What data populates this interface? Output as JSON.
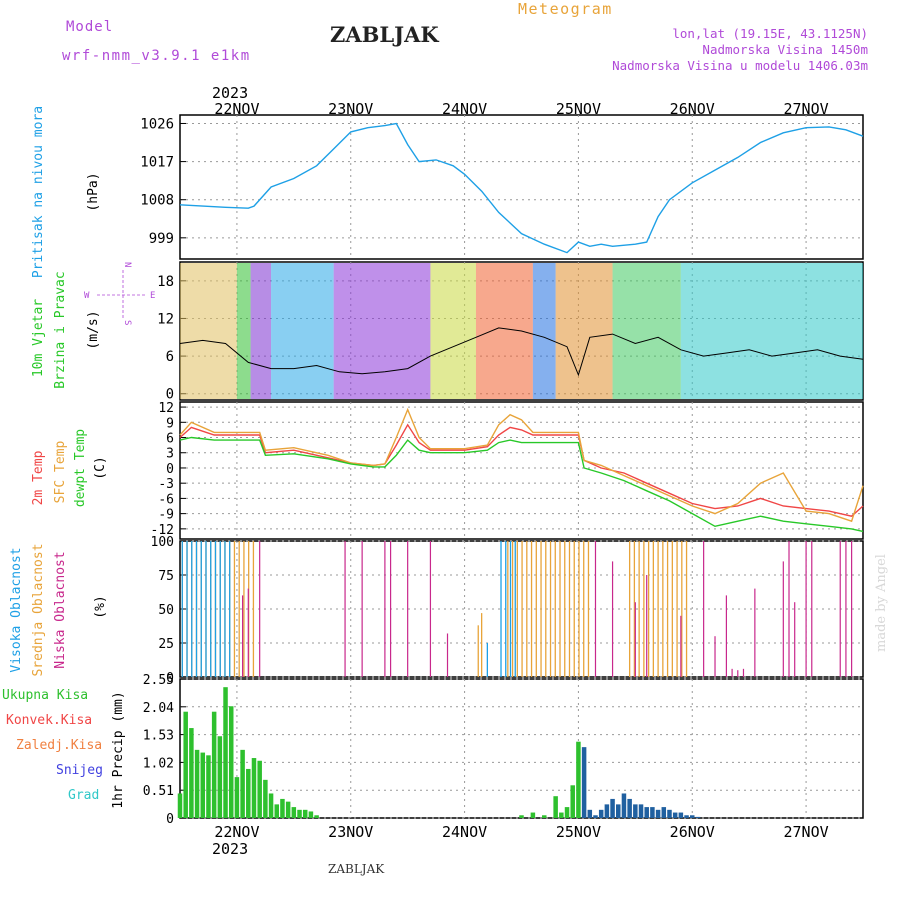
{
  "header": {
    "model_label": "Model",
    "model_name": "wrf-nmm_v3.9.1 e1km",
    "title": "ZABLJAK",
    "meteogram": "Meteogram",
    "coords": "lon,lat (19.15E, 43.1125N)",
    "elevation": "Nadmorska Visina 1450m",
    "model_elevation": "Nadmorska Visina u modelu 1406.03m",
    "footer_title": "ZABLJAK",
    "credit": "made by Angel"
  },
  "time_axis": {
    "year": "2023",
    "days": [
      "22NOV",
      "23NOV",
      "24NOV",
      "25NOV",
      "26NOV",
      "27NOV"
    ],
    "start_offset_days": -0.5,
    "end_offset_days": 5.5
  },
  "colors": {
    "pressure": "#1ea0e6",
    "temp2m": "#f04646",
    "sfc_temp": "#e8a43a",
    "dewpt": "#28c828",
    "high_cloud": "#1ea0e6",
    "mid_cloud": "#e8a43a",
    "low_cloud": "#c8288c",
    "precip": "#2ec02e",
    "snow_precip": "#2060a0",
    "wind_speed": "#000000"
  },
  "panels": {
    "pressure": {
      "ylabel_colored": "Pritisak na nivou mora",
      "unit": "(hPa)",
      "ticks": [
        "999",
        "1008",
        "1017",
        "1026"
      ]
    },
    "wind": {
      "ylabel_1": "10m Vjetar",
      "ylabel_2": "Brzina i Pravac",
      "unit": "(m/s)",
      "ticks": [
        "0",
        "6",
        "12",
        "18"
      ],
      "compass": {
        "n": "N",
        "s": "S",
        "e": "E",
        "w": "W"
      }
    },
    "temp": {
      "label_2m": "2m Temp",
      "label_sfc": "SFC Temp",
      "label_dew": "dewpt Temp",
      "unit": "(C)",
      "ticks": [
        "-12",
        "-9",
        "-6",
        "-3",
        "0",
        "3",
        "6",
        "9",
        "12"
      ]
    },
    "cloud": {
      "label_high": "Visoka Oblacnost",
      "label_mid": "Srednja Oblacnost",
      "label_low": "Niska Oblacnost",
      "unit": "(%)",
      "ticks": [
        "0",
        "25",
        "50",
        "75",
        "100"
      ]
    },
    "precip": {
      "legend": [
        "Ukupna Kisa",
        "Konvek.Kisa",
        "Zaledj.Kisa",
        "Snijeg",
        "Grad"
      ],
      "legend_colors": [
        "#2ec02e",
        "#f04646",
        "#f08040",
        "#4040e0",
        "#30c8c8"
      ],
      "ylabel": "1hr Precip (mm)",
      "ticks": [
        "0",
        "0.51",
        "1.02",
        "1.53",
        "2.04",
        "2.55"
      ]
    }
  },
  "chart_data": [
    {
      "type": "line",
      "name": "pressure",
      "ylim": [
        994,
        1028
      ],
      "x_days": [
        -0.5,
        -0.3,
        -0.1,
        0.1,
        0.15,
        0.3,
        0.5,
        0.7,
        0.85,
        1.0,
        1.15,
        1.3,
        1.4,
        1.5,
        1.6,
        1.75,
        1.9,
        2.0,
        2.15,
        2.3,
        2.5,
        2.7,
        2.9,
        3.0,
        3.1,
        3.2,
        3.3,
        3.5,
        3.6,
        3.7,
        3.8,
        4.0,
        4.2,
        4.4,
        4.6,
        4.8,
        5.0,
        5.2,
        5.35,
        5.5
      ],
      "values": [
        1006.8,
        1006.5,
        1006.2,
        1006,
        1006.5,
        1011,
        1013,
        1016,
        1020,
        1024,
        1025,
        1025.5,
        1026,
        1021,
        1017,
        1017.4,
        1016,
        1014,
        1010,
        1005,
        1000,
        997.5,
        995.5,
        998,
        997,
        997.5,
        997,
        997.5,
        998,
        1004,
        1008,
        1012,
        1015,
        1018,
        1021.5,
        1023.8,
        1025,
        1025.2,
        1024.5,
        1023
      ]
    },
    {
      "type": "line",
      "name": "10m wind speed",
      "ylim": [
        -1,
        21
      ],
      "x_days": [
        -0.5,
        -0.3,
        -0.1,
        0.1,
        0.3,
        0.5,
        0.7,
        0.9,
        1.1,
        1.3,
        1.5,
        1.7,
        1.9,
        2.1,
        2.3,
        2.5,
        2.7,
        2.9,
        3.0,
        3.1,
        3.3,
        3.5,
        3.7,
        3.9,
        4.1,
        4.3,
        4.5,
        4.7,
        4.9,
        5.1,
        5.3,
        5.5
      ],
      "values": [
        8,
        8.5,
        8,
        5,
        4,
        4,
        4.5,
        3.5,
        3.2,
        3.5,
        4,
        6,
        7.5,
        9,
        10.5,
        10,
        9,
        7.5,
        3,
        9,
        9.5,
        8,
        9,
        7,
        6,
        6.5,
        7,
        6,
        6.5,
        7,
        6,
        5.5
      ]
    },
    {
      "type": "line",
      "name": "temperature",
      "ylim": [
        -14,
        13
      ],
      "x_days": [
        -0.5,
        -0.4,
        -0.2,
        0,
        0.2,
        0.25,
        0.5,
        0.8,
        1.0,
        1.2,
        1.3,
        1.4,
        1.5,
        1.6,
        1.7,
        2.0,
        2.2,
        2.3,
        2.4,
        2.5,
        2.6,
        2.8,
        3.0,
        3.05,
        3.2,
        3.4,
        3.6,
        3.8,
        4.0,
        4.2,
        4.4,
        4.6,
        4.8,
        5.0,
        5.2,
        5.4,
        5.5
      ],
      "series": [
        {
          "name": "2m Temp",
          "values": [
            6,
            8,
            6.5,
            6.5,
            6.5,
            3,
            3.5,
            2,
            1,
            0.5,
            0.8,
            4.5,
            8.5,
            5,
            3.5,
            3.5,
            4.2,
            6.5,
            8,
            7.5,
            6.5,
            6.5,
            6.5,
            1.5,
            0,
            -1,
            -3,
            -5,
            -7,
            -8,
            -7.5,
            -6,
            -7.5,
            -8,
            -8.5,
            -9.5,
            -7.5
          ]
        },
        {
          "name": "SFC Temp",
          "values": [
            6.5,
            9,
            7,
            7,
            7,
            3.5,
            4,
            2.5,
            1,
            0.5,
            0.8,
            6,
            11.5,
            6,
            3.8,
            3.8,
            4.5,
            8.5,
            10.5,
            9.5,
            7,
            7,
            7,
            1.5,
            0.5,
            -1.5,
            -3.5,
            -5.5,
            -7.5,
            -9,
            -7,
            -3,
            -1,
            -8.5,
            -9,
            -10.5,
            -3.5
          ]
        },
        {
          "name": "dewpt Temp",
          "values": [
            5.5,
            6,
            5.5,
            5.5,
            5.5,
            2.5,
            2.8,
            1.8,
            0.8,
            0.2,
            0.2,
            2.5,
            5.5,
            3.5,
            3,
            3,
            3.5,
            5,
            5.5,
            5,
            5,
            5,
            5,
            0,
            -1,
            -2.5,
            -4.5,
            -6.5,
            -9,
            -11.5,
            -10.5,
            -9.5,
            -10.5,
            -11,
            -11.5,
            -12,
            -12.5
          ]
        }
      ]
    },
    {
      "type": "bar",
      "name": "cloud cover",
      "ylim": [
        0,
        100
      ],
      "series": [
        {
          "name": "Visoka Oblacnost",
          "spans": [
            [
              -0.48,
              -0.03
            ],
            [
              2.32,
              2.45
            ]
          ],
          "single": [
            [
              2.2,
              25
            ]
          ]
        },
        {
          "name": "Srednja Oblacnost",
          "spans": [
            [
              -0.48,
              0.15
            ],
            [
              2.38,
              3.1
            ],
            [
              3.45,
              3.95
            ]
          ],
          "single": [
            [
              2.15,
              47
            ],
            [
              2.12,
              38
            ]
          ]
        },
        {
          "name": "Niska Oblacnost",
          "x_days": [
            0.05,
            0.1,
            0.2,
            0.95,
            1.1,
            1.3,
            1.35,
            1.5,
            1.7,
            1.85,
            3.15,
            3.3,
            3.5,
            3.6,
            3.9,
            4.1,
            4.2,
            4.3,
            4.35,
            4.4,
            4.45,
            4.55,
            4.8,
            4.85,
            4.9,
            5.0,
            5.05,
            5.3,
            5.35,
            5.4
          ],
          "values": [
            60,
            65,
            100,
            100,
            100,
            100,
            100,
            100,
            100,
            32,
            100,
            85,
            55,
            75,
            45,
            100,
            30,
            60,
            6,
            5,
            6,
            65,
            85,
            100,
            55,
            100,
            100,
            100,
            100,
            100
          ]
        }
      ]
    },
    {
      "type": "bar",
      "name": "1hr precip total",
      "ylim": [
        0,
        2.55
      ],
      "x_days": [
        -0.5,
        -0.45,
        -0.4,
        -0.35,
        -0.3,
        -0.25,
        -0.2,
        -0.15,
        -0.1,
        -0.05,
        0,
        0.05,
        0.1,
        0.15,
        0.2,
        0.25,
        0.3,
        0.35,
        0.4,
        0.45,
        0.5,
        0.55,
        0.6,
        0.65,
        0.7,
        2.5,
        2.6,
        2.7,
        2.8,
        2.85,
        2.9,
        2.95,
        3.0,
        3.05,
        3.1,
        3.15,
        3.2,
        3.25,
        3.3,
        3.35,
        3.4,
        3.45,
        3.5,
        3.55,
        3.6,
        3.65,
        3.7,
        3.75,
        3.8,
        3.85,
        3.9,
        3.95,
        4.0,
        4.05
      ],
      "values": [
        0.45,
        1.95,
        1.65,
        1.25,
        1.2,
        1.15,
        1.95,
        1.5,
        2.4,
        2.05,
        0.75,
        1.25,
        0.9,
        1.1,
        1.05,
        0.7,
        0.45,
        0.25,
        0.35,
        0.3,
        0.2,
        0.15,
        0.15,
        0.12,
        0.05,
        0.05,
        0.1,
        0.05,
        0.4,
        0.1,
        0.2,
        0.6,
        1.4,
        1.3,
        0.15,
        0.05,
        0.15,
        0.25,
        0.35,
        0.25,
        0.45,
        0.35,
        0.25,
        0.25,
        0.2,
        0.2,
        0.15,
        0.2,
        0.15,
        0.1,
        0.1,
        0.05,
        0.05,
        0.02
      ],
      "snow_from_day": 3.05
    }
  ]
}
